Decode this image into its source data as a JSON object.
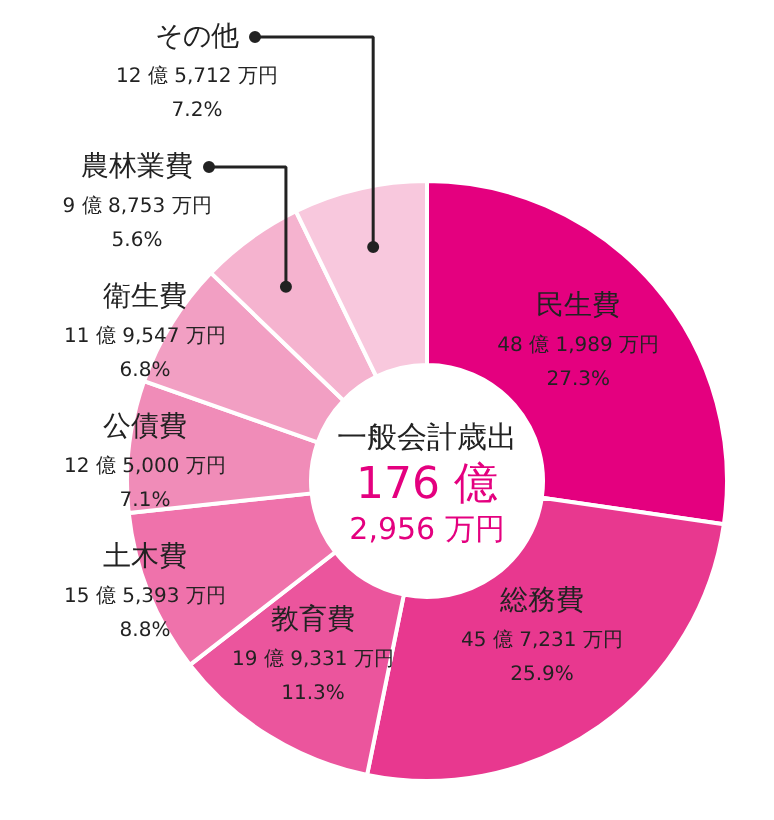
{
  "chart_data": {
    "type": "donut",
    "title": "一般会計歳出",
    "annotations": [
      "176 億",
      "2,956 万円"
    ],
    "categories": [
      "民生費",
      "総務費",
      "教育費",
      "土木費",
      "公債費",
      "衛生費",
      "農林業費",
      "その他"
    ],
    "values": [
      27.3,
      25.9,
      11.3,
      8.8,
      7.1,
      6.8,
      5.6,
      7.2
    ],
    "colors": [
      "#e4007f",
      "#e8388f",
      "#eb559d",
      "#ef72ab",
      "#f08cb8",
      "#f29fc3",
      "#f5b3cf",
      "#f8c8dd"
    ],
    "value_labels": [
      "48 億 1,989 万円\n27.3%",
      "45 億 7,231 万円\n25.9%",
      "19 億 9,331 万円\n11.3%",
      "15 億 5,393 万円\n8.8%",
      "12 億 5,000 万円\n7.1%",
      "11 億 9,547 万円\n6.8%",
      "9 億 8,753 万円\n5.6%",
      "12 億 5,712 万円\n7.2%"
    ]
  }
}
